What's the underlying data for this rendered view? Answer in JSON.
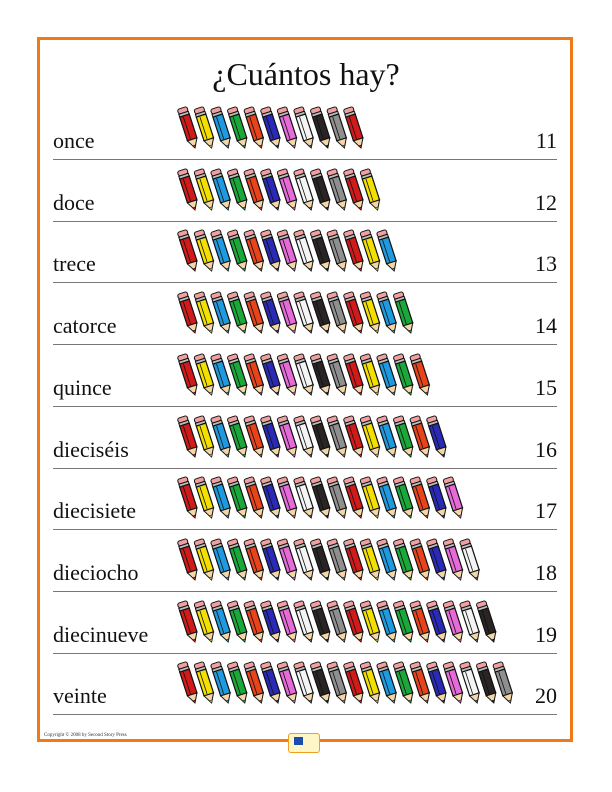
{
  "title": "¿Cuántos hay?",
  "rows": [
    {
      "word": "once",
      "number": "11",
      "count": 11
    },
    {
      "word": "doce",
      "number": "12",
      "count": 12
    },
    {
      "word": "trece",
      "number": "13",
      "count": 13
    },
    {
      "word": "catorce",
      "number": "14",
      "count": 14
    },
    {
      "word": "quince",
      "number": "15",
      "count": 15
    },
    {
      "word": "dieciséis",
      "number": "16",
      "count": 16
    },
    {
      "word": "diecisiete",
      "number": "17",
      "count": 17
    },
    {
      "word": "dieciocho",
      "number": "18",
      "count": 18
    },
    {
      "word": "diecinueve",
      "number": "19",
      "count": 19
    },
    {
      "word": "veinte",
      "number": "20",
      "count": 20
    }
  ],
  "pencil_colors": [
    "#d11a1a",
    "#f4e000",
    "#1e9be0",
    "#1aa83a",
    "#e8431a",
    "#2a2ab8",
    "#e66ad8",
    "#f4f4f4",
    "#2a2424",
    "#8f8f8f"
  ],
  "frame_color": "#f07a1a",
  "copyright": "Copyright © 2008 by Second Story Press",
  "logo_icon": "book-logo-icon"
}
